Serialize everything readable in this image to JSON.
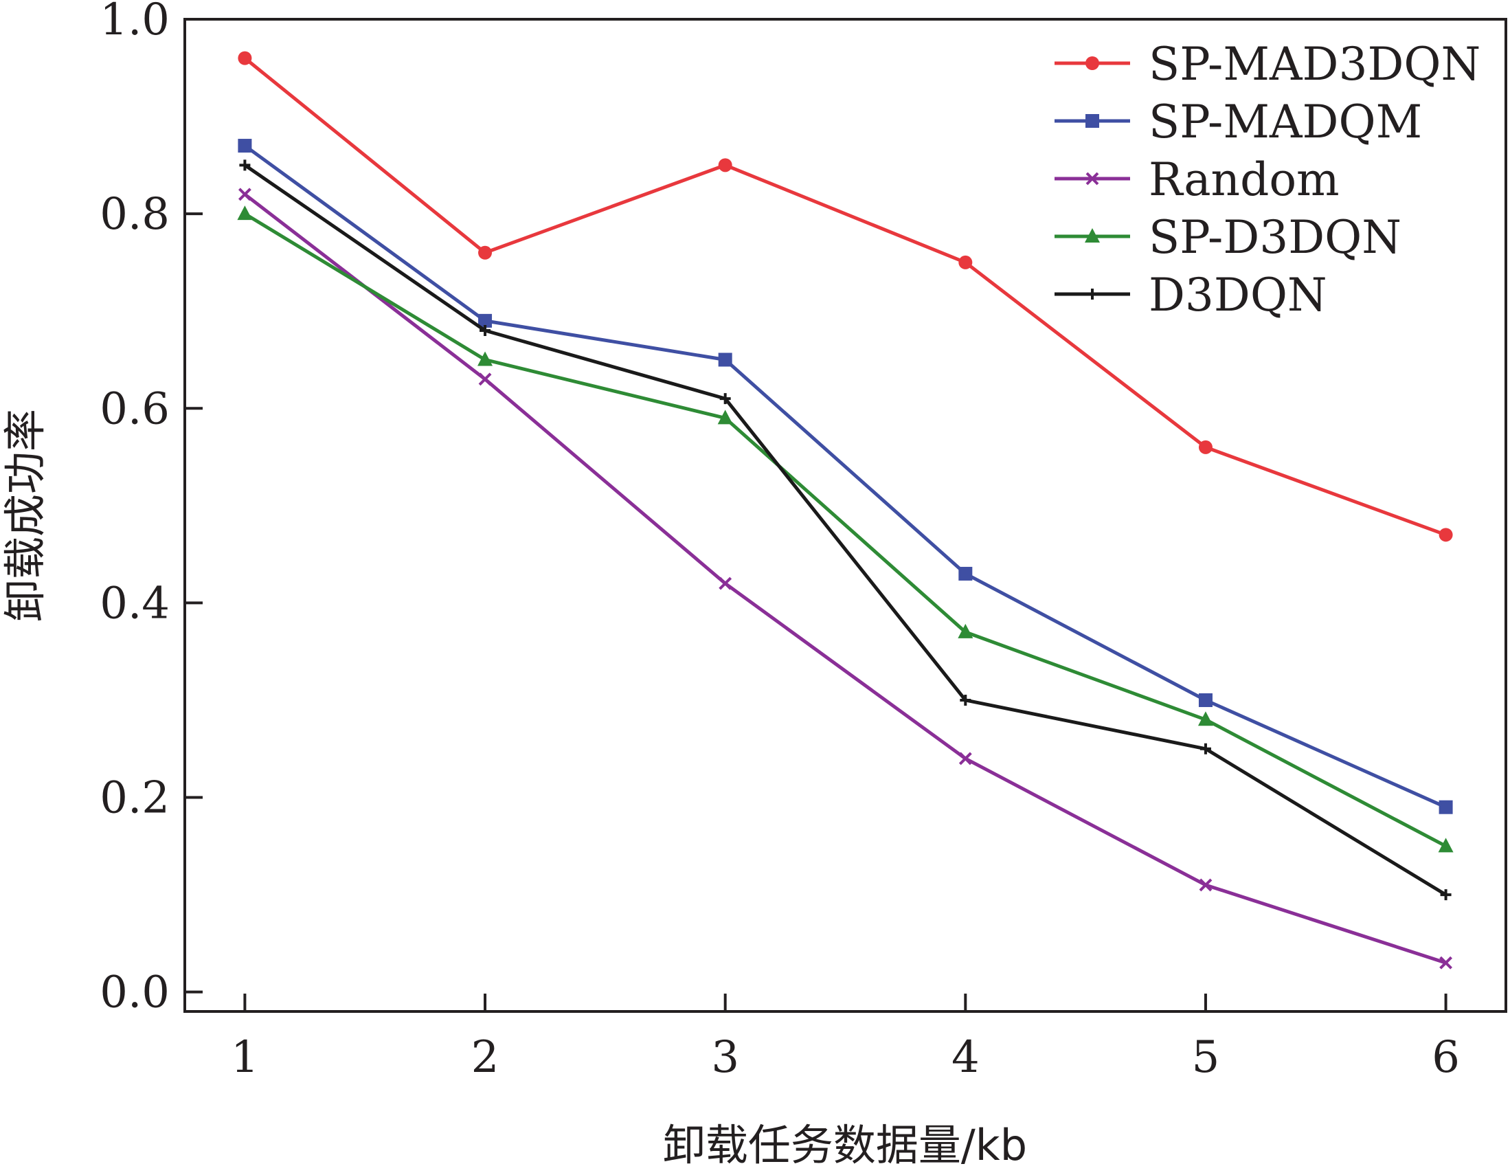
{
  "chart_data": {
    "type": "line",
    "xlabel": "卸载任务数据量/kb",
    "ylabel": "卸载成功率",
    "xlim": [
      0.75,
      6.25
    ],
    "ylim": [
      -0.02,
      1.0
    ],
    "x_ticks": [
      "1",
      "2",
      "3",
      "4",
      "5",
      "6"
    ],
    "y_ticks": [
      "0.0",
      "0.2",
      "0.4",
      "0.6",
      "0.8",
      "1.0"
    ],
    "x": [
      1,
      2,
      3,
      4,
      5,
      6
    ],
    "legend_position": "top-right",
    "grid": false,
    "series": [
      {
        "name": "SP-MAD3DQN",
        "color": "#e8383d",
        "marker": "circle",
        "values": [
          0.96,
          0.76,
          0.85,
          0.75,
          0.56,
          0.47
        ]
      },
      {
        "name": "SP-MADQM",
        "color": "#3f4fa3",
        "marker": "square",
        "values": [
          0.87,
          0.69,
          0.65,
          0.43,
          0.3,
          0.19
        ]
      },
      {
        "name": "Random",
        "color": "#8a2f97",
        "marker": "x",
        "values": [
          0.82,
          0.63,
          0.42,
          0.24,
          0.11,
          0.03
        ]
      },
      {
        "name": "SP-D3DQN",
        "color": "#2e8b35",
        "marker": "triangle",
        "values": [
          0.8,
          0.65,
          0.59,
          0.37,
          0.28,
          0.15
        ]
      },
      {
        "name": "D3DQN",
        "color": "#1a1a1a",
        "marker": "plus",
        "values": [
          0.85,
          0.68,
          0.61,
          0.3,
          0.25,
          0.1
        ]
      }
    ]
  }
}
